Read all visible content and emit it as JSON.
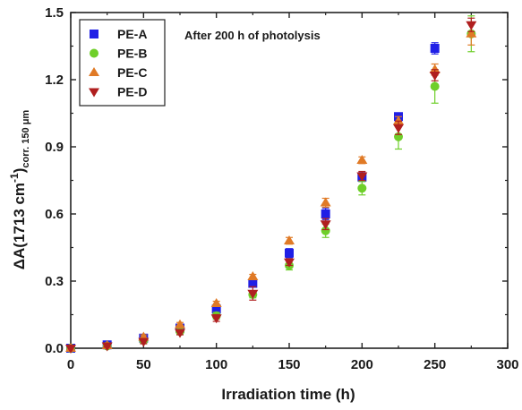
{
  "chart_data": {
    "type": "scatter",
    "annotation": "After 200 h of photolysis",
    "xlabel": "Irradiation time (h)",
    "ylabel_main": "ΔA(1713 cm",
    "ylabel_sup": "-1",
    "ylabel_close": ")",
    "ylabel_sub": "corr. 150 μm",
    "xlim": [
      0,
      300
    ],
    "ylim": [
      0,
      1.5
    ],
    "xticks": [
      "0",
      "50",
      "100",
      "150",
      "200",
      "250",
      "300"
    ],
    "yticks": [
      "0.0",
      "0.3",
      "0.6",
      "0.9",
      "1.2",
      "1.5"
    ],
    "legend_position": "top-left",
    "grid": false,
    "x": [
      0,
      25,
      50,
      75,
      100,
      125,
      150,
      175,
      200,
      225,
      250,
      275
    ],
    "series": [
      {
        "name": "PE-A",
        "marker": "square",
        "color": "#1f1fe6",
        "values": [
          0.0,
          0.015,
          0.045,
          0.09,
          0.175,
          0.29,
          0.425,
          0.6,
          0.765,
          1.035,
          1.34,
          null
        ],
        "errors": [
          0,
          0.005,
          0.01,
          0.01,
          0.015,
          0.015,
          0.02,
          0.025,
          0.02,
          0.015,
          0.025,
          null
        ]
      },
      {
        "name": "PE-B",
        "marker": "circle",
        "color": "#6fcf2a",
        "values": [
          0.0,
          0.01,
          0.035,
          0.075,
          0.145,
          0.24,
          0.37,
          0.525,
          0.715,
          0.945,
          1.17,
          1.405
        ],
        "errors": [
          0,
          0.005,
          0.01,
          0.01,
          0.015,
          0.015,
          0.02,
          0.03,
          0.03,
          0.055,
          0.075,
          0.08
        ]
      },
      {
        "name": "PE-C",
        "marker": "triangle-up",
        "color": "#e07a26",
        "values": [
          0.0,
          0.012,
          0.05,
          0.105,
          0.2,
          0.32,
          0.48,
          0.65,
          0.84,
          1.015,
          1.245,
          1.405
        ],
        "errors": [
          0,
          0.005,
          0.01,
          0.01,
          0.01,
          0.01,
          0.015,
          0.02,
          0.015,
          0.02,
          0.025,
          0.05
        ]
      },
      {
        "name": "PE-D",
        "marker": "triangle-down",
        "color": "#b01f1f",
        "values": [
          0.0,
          0.01,
          0.03,
          0.07,
          0.135,
          0.245,
          0.385,
          0.555,
          0.77,
          0.985,
          1.22,
          1.445
        ],
        "errors": [
          0,
          0.005,
          0.01,
          0.01,
          0.015,
          0.03,
          0.015,
          0.025,
          0.02,
          0.03,
          0.025,
          0.03
        ]
      }
    ]
  }
}
